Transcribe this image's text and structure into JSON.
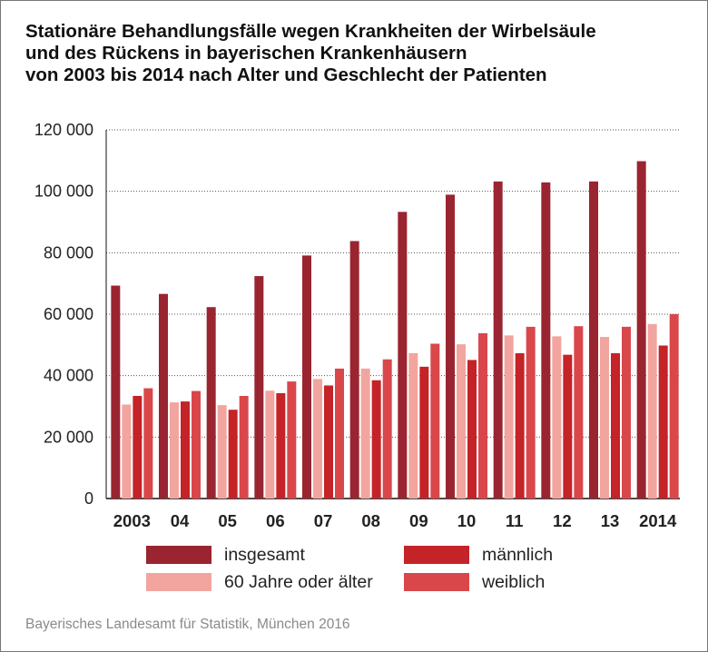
{
  "title": {
    "line1": "Stationäre Behandlungsfälle wegen Krankheiten der Wirbelsäule",
    "line2": "und des Rückens in bayerischen Krankenhäusern",
    "line3": "von 2003 bis 2014 nach Alter und Geschlecht der Patienten"
  },
  "source": "Bayerisches Landesamt für Statistik, München 2016",
  "colors": {
    "insgesamt": "#9a2430",
    "maennlich": "#c42327",
    "sixty_plus": "#f2a59e",
    "weiblich": "#d9474b",
    "gridline": "#555555"
  },
  "legend": {
    "insgesamt": "insgesamt",
    "maennlich": "männlich",
    "sixty_plus": "60 Jahre oder älter",
    "weiblich": "weiblich"
  },
  "chart_data": {
    "type": "bar",
    "title": "Stationäre Behandlungsfälle wegen Krankheiten der Wirbelsäule und des Rückens in bayerischen Krankenhäusern von 2003 bis 2014 nach Alter und Geschlecht der Patienten",
    "categories": [
      "2003",
      "04",
      "05",
      "06",
      "07",
      "08",
      "09",
      "10",
      "11",
      "12",
      "13",
      "2014"
    ],
    "ylim": [
      0,
      120000
    ],
    "yticks": [
      0,
      20000,
      40000,
      60000,
      80000,
      100000,
      120000
    ],
    "ytick_labels": [
      "0",
      "20 000",
      "40 000",
      "60 000",
      "80 000",
      "100 000",
      "120 000"
    ],
    "grid": true,
    "xlabel": "",
    "ylabel": "",
    "series": [
      {
        "name": "insgesamt",
        "color_key": "insgesamt",
        "values": [
          69300,
          66600,
          62300,
          72400,
          79100,
          83800,
          93300,
          98900,
          103200,
          102900,
          103200,
          109800
        ]
      },
      {
        "name": "60 Jahre oder älter",
        "color_key": "sixty_plus",
        "values": [
          30600,
          31300,
          30400,
          35100,
          38900,
          42300,
          47300,
          50200,
          53100,
          52800,
          52600,
          56800
        ]
      },
      {
        "name": "männlich",
        "color_key": "maennlich",
        "values": [
          33400,
          31600,
          28900,
          34300,
          36800,
          38500,
          42900,
          45100,
          47300,
          46800,
          47300,
          49800
        ]
      },
      {
        "name": "weiblich",
        "color_key": "weiblich",
        "values": [
          35900,
          35000,
          33400,
          38100,
          42300,
          45300,
          50400,
          53800,
          55900,
          56100,
          55900,
          60000
        ]
      }
    ]
  }
}
